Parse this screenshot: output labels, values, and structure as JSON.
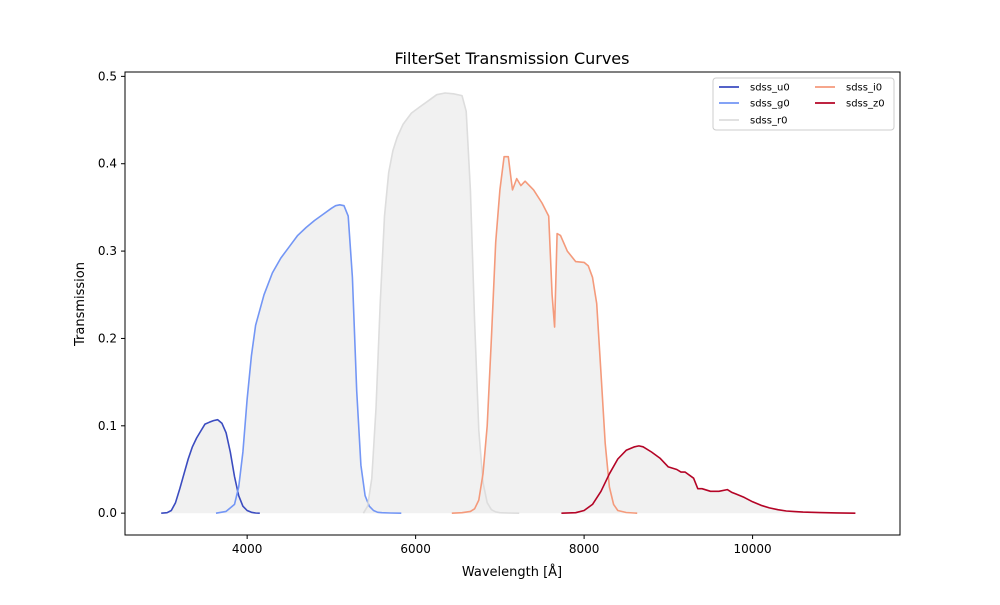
{
  "chart_data": {
    "type": "line",
    "title": "FilterSet Transmission Curves",
    "xlabel": "Wavelength [Å]",
    "ylabel": "Transmission",
    "xlim": [
      2550,
      11750
    ],
    "ylim": [
      -0.025,
      0.505
    ],
    "xticks": [
      4000,
      6000,
      8000,
      10000
    ],
    "xtick_labels": [
      "4000",
      "6000",
      "8000",
      "10000"
    ],
    "yticks": [
      0.0,
      0.1,
      0.2,
      0.3,
      0.4,
      0.5
    ],
    "ytick_labels": [
      "0.0",
      "0.1",
      "0.2",
      "0.3",
      "0.4",
      "0.5"
    ],
    "grid": false,
    "fill_under_curves": true,
    "fill_color": "#eeeeee",
    "legend": {
      "position": "top-right",
      "columns": 2
    },
    "series": [
      {
        "name": "sdss_u0",
        "color": "#3b4cc0",
        "x": [
          2980,
          3050,
          3100,
          3150,
          3200,
          3250,
          3300,
          3350,
          3400,
          3450,
          3500,
          3550,
          3600,
          3650,
          3700,
          3750,
          3800,
          3850,
          3900,
          3950,
          4000,
          4050,
          4100,
          4150
        ],
        "y": [
          0.0,
          0.0005,
          0.003,
          0.012,
          0.028,
          0.045,
          0.062,
          0.076,
          0.086,
          0.094,
          0.102,
          0.104,
          0.106,
          0.107,
          0.103,
          0.092,
          0.07,
          0.042,
          0.02,
          0.008,
          0.003,
          0.001,
          0.0002,
          0.0
        ]
      },
      {
        "name": "sdss_g0",
        "color": "#7396f5",
        "x": [
          3630,
          3750,
          3850,
          3900,
          3950,
          4000,
          4050,
          4100,
          4200,
          4300,
          4400,
          4500,
          4600,
          4700,
          4800,
          4900,
          5000,
          5050,
          5100,
          5150,
          5200,
          5250,
          5300,
          5350,
          5400,
          5450,
          5500,
          5550,
          5600,
          5700,
          5830
        ],
        "y": [
          0.0,
          0.002,
          0.01,
          0.03,
          0.07,
          0.13,
          0.18,
          0.215,
          0.25,
          0.275,
          0.292,
          0.305,
          0.318,
          0.327,
          0.335,
          0.342,
          0.349,
          0.352,
          0.353,
          0.352,
          0.34,
          0.27,
          0.14,
          0.055,
          0.02,
          0.008,
          0.003,
          0.001,
          0.0005,
          0.0002,
          0.0
        ]
      },
      {
        "name": "sdss_r0",
        "color": "#dddddd",
        "x": [
          5380,
          5430,
          5480,
          5530,
          5580,
          5630,
          5680,
          5730,
          5780,
          5850,
          5950,
          6050,
          6150,
          6250,
          6350,
          6450,
          6550,
          6600,
          6650,
          6700,
          6750,
          6800,
          6850,
          6900,
          6950,
          7000,
          7100,
          7230
        ],
        "y": [
          0.0,
          0.008,
          0.04,
          0.12,
          0.24,
          0.34,
          0.39,
          0.415,
          0.43,
          0.445,
          0.458,
          0.465,
          0.472,
          0.479,
          0.481,
          0.48,
          0.478,
          0.46,
          0.37,
          0.22,
          0.095,
          0.035,
          0.012,
          0.004,
          0.0015,
          0.0005,
          0.0002,
          0.0
        ]
      },
      {
        "name": "sdss_i0",
        "color": "#f49a7b",
        "x": [
          6430,
          6550,
          6650,
          6700,
          6750,
          6800,
          6850,
          6900,
          6950,
          7000,
          7050,
          7100,
          7130,
          7150,
          7200,
          7250,
          7300,
          7400,
          7500,
          7580,
          7620,
          7650,
          7680,
          7720,
          7800,
          7900,
          8000,
          8050,
          8100,
          8150,
          8200,
          8250,
          8300,
          8350,
          8400,
          8500,
          8630
        ],
        "y": [
          0.0,
          0.0005,
          0.002,
          0.005,
          0.015,
          0.045,
          0.1,
          0.2,
          0.31,
          0.37,
          0.408,
          0.408,
          0.385,
          0.37,
          0.383,
          0.375,
          0.38,
          0.37,
          0.355,
          0.34,
          0.25,
          0.213,
          0.32,
          0.318,
          0.3,
          0.288,
          0.287,
          0.283,
          0.27,
          0.24,
          0.16,
          0.08,
          0.03,
          0.01,
          0.003,
          0.0008,
          0.0
        ]
      },
      {
        "name": "sdss_z0",
        "color": "#b40426",
        "x": [
          7730,
          7900,
          8000,
          8100,
          8200,
          8300,
          8400,
          8500,
          8600,
          8650,
          8700,
          8800,
          8900,
          9000,
          9100,
          9150,
          9200,
          9300,
          9350,
          9400,
          9500,
          9600,
          9700,
          9750,
          9800,
          9900,
          10000,
          10100,
          10200,
          10300,
          10400,
          10500,
          10600,
          10800,
          11000,
          11220
        ],
        "y": [
          0.0,
          0.0005,
          0.003,
          0.01,
          0.025,
          0.045,
          0.062,
          0.072,
          0.076,
          0.077,
          0.076,
          0.07,
          0.063,
          0.053,
          0.05,
          0.047,
          0.047,
          0.04,
          0.028,
          0.028,
          0.025,
          0.025,
          0.027,
          0.024,
          0.022,
          0.018,
          0.013,
          0.009,
          0.006,
          0.004,
          0.0025,
          0.0018,
          0.0012,
          0.0006,
          0.0003,
          0.0
        ]
      }
    ]
  }
}
